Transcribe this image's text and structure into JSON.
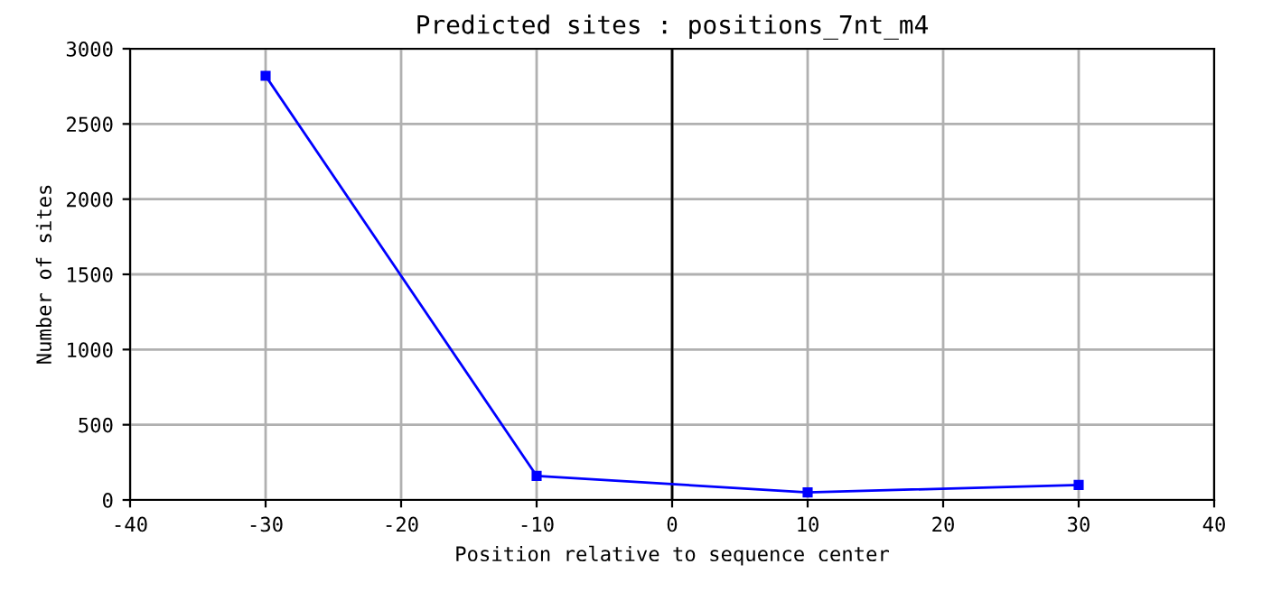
{
  "chart_data": {
    "type": "line",
    "title": "Predicted sites : positions_7nt_m4",
    "xlabel": "Position relative to sequence center",
    "ylabel": "Number of sites",
    "x": [
      -30,
      -10,
      10,
      30
    ],
    "series": [
      {
        "color": "#0000ff",
        "values": [
          2820,
          160,
          50,
          100
        ]
      }
    ],
    "xlim": [
      -40,
      40
    ],
    "xticks": [
      -40,
      -30,
      -20,
      -10,
      0,
      10,
      20,
      30,
      40
    ],
    "ylim": [
      0,
      3000
    ],
    "yticks": [
      0,
      500,
      1000,
      1500,
      2000,
      2500,
      3000
    ],
    "ref_lines": [
      {
        "axis": "x",
        "value": 0,
        "color": "#000000"
      }
    ],
    "grid": true,
    "marker": "square",
    "line_style": "solid"
  }
}
